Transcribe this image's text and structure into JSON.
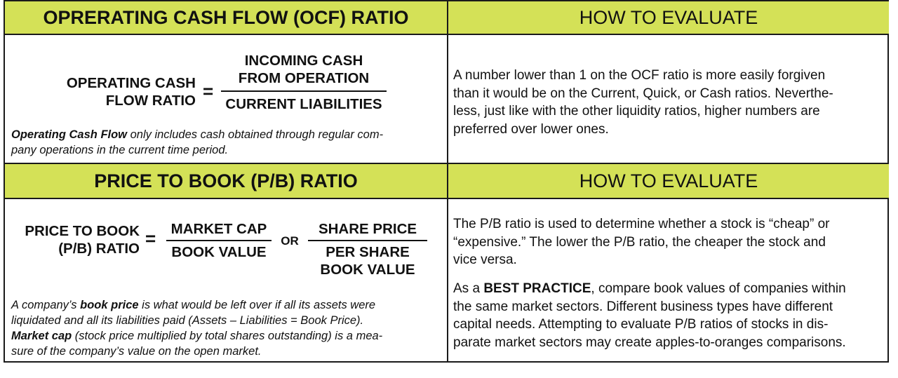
{
  "ocf": {
    "header": "OPRERATING CASH FLOW (OCF) RATIO",
    "label_line1": "OPERATING CASH",
    "label_line2": "FLOW RATIO",
    "equals": "=",
    "numerator_line1": "INCOMING CASH",
    "numerator_line2": "FROM OPERATION",
    "denominator": "CURRENT LIABILITIES",
    "note_bold": "Operating Cash Flow",
    "note_rest_line1": " only includes cash obtained through regular com-",
    "note_line2": "pany operations in the current time period."
  },
  "ocf_eval": {
    "header": "HOW TO EVALUATE",
    "lines": [
      "A number lower than 1 on the OCF ratio is more easily forgiven",
      "than it would be on the Current, Quick, or Cash ratios. Neverthe-",
      "less, just like with the other liquidity ratios, higher numbers are",
      "preferred over lower ones."
    ]
  },
  "pb": {
    "header": "PRICE TO BOOK (P/B) RATIO",
    "label_line1": "PRICE TO BOOK",
    "label_line2": "(P/B) RATIO",
    "equals": "=",
    "num1": "MARKET CAP",
    "den1": "BOOK VALUE",
    "or": "OR",
    "num2": "SHARE PRICE",
    "den2_line1": "PER SHARE",
    "den2_line2": "BOOK VALUE",
    "note1_prefix": "A company’s ",
    "note1_bold": "book price",
    "note1_rest": " is what would be left over if all its assets were",
    "note1_line2": "liquidated and all its liabilities paid (Assets – Liabilities = Book Price).",
    "note2_bold": "Market cap",
    "note2_rest": " (stock price multiplied by total shares outstanding) is a mea-",
    "note2_line2": "sure of the company’s value on the open market."
  },
  "pb_eval": {
    "header": "HOW TO EVALUATE",
    "para1_lines": [
      "The P/B ratio is used to determine whether a stock is “cheap” or",
      "“expensive.” The lower the P/B ratio, the cheaper the stock and",
      "vice versa."
    ],
    "para2_prefix": "As a ",
    "para2_bold": "BEST PRACTICE",
    "para2_rest": ", compare book values of companies within",
    "para2_lines": [
      "the same market sectors. Different business types have different",
      "capital needs. Attempting to evaluate P/B ratios of stocks in dis-",
      "parate market sectors may create apples-to-oranges comparisons."
    ]
  },
  "colors": {
    "header_bg": "#d4e157",
    "border": "#1a1a1a"
  }
}
